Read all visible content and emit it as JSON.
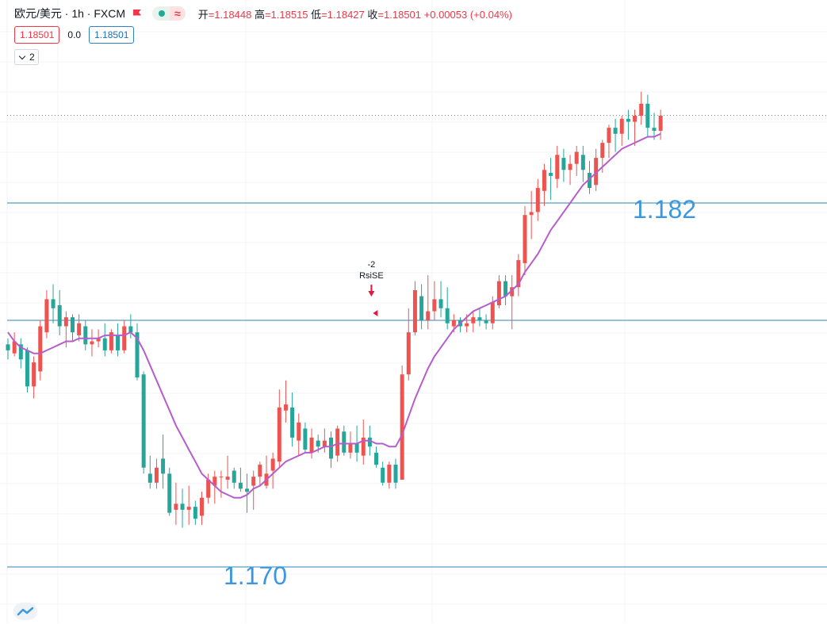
{
  "header": {
    "symbol": "欧元/美元 · 1h · FXCM",
    "open_label": "开",
    "open": "=1.18448",
    "high_label": "高",
    "high": "=1.18515",
    "low_label": "低",
    "low": "=1.18427",
    "close_label": "收",
    "close": "=1.18501",
    "change": "+0.00053 (+0.04%)"
  },
  "trade": {
    "sell": "1.18501",
    "spread": "0.0",
    "buy": "1.18501"
  },
  "indicators_toggle": "2",
  "colors": {
    "up": "#ef5350",
    "down": "#26a69a",
    "ma": "#b65dcc",
    "hline": "#2f86b5",
    "annotation": "#3b98e0"
  },
  "icons": [
    "flag-icon",
    "eye-dot-icon",
    "wave-icon",
    "chevron-down-icon",
    "tradingview-logo-icon"
  ],
  "chart_data": {
    "type": "candlestick",
    "symbol": "EUR/USD",
    "interval": "1h",
    "price_range": [
      1.1695,
      1.1858
    ],
    "current_price": 1.18501,
    "horizontal_levels": [
      1.17,
      1.1782,
      1.1821
    ],
    "annotations": [
      {
        "text": "1.170",
        "price": 1.17
      },
      {
        "text": "1.182",
        "price": 1.1821
      }
    ],
    "signal": {
      "index": 56,
      "text": "RsiSE",
      "value": "-2",
      "price": 1.179
    },
    "candles": [
      [
        1.1774,
        1.1776,
        1.1769,
        1.1772
      ],
      [
        1.1771,
        1.1778,
        1.177,
        1.1775
      ],
      [
        1.1774,
        1.1776,
        1.1766,
        1.1769
      ],
      [
        1.1772,
        1.1773,
        1.1758,
        1.176
      ],
      [
        1.176,
        1.177,
        1.1756,
        1.1768
      ],
      [
        1.1765,
        1.1782,
        1.1762,
        1.178
      ],
      [
        1.1778,
        1.1792,
        1.1776,
        1.1789
      ],
      [
        1.1789,
        1.1794,
        1.1781,
        1.1786
      ],
      [
        1.1787,
        1.1792,
        1.1777,
        1.178
      ],
      [
        1.178,
        1.1785,
        1.1773,
        1.1783
      ],
      [
        1.1783,
        1.1784,
        1.1775,
        1.1778
      ],
      [
        1.1777,
        1.1784,
        1.1775,
        1.1781
      ],
      [
        1.178,
        1.1782,
        1.1772,
        1.1774
      ],
      [
        1.1774,
        1.1779,
        1.177,
        1.1775
      ],
      [
        1.1775,
        1.1779,
        1.1773,
        1.1776
      ],
      [
        1.1776,
        1.1781,
        1.177,
        1.1772
      ],
      [
        1.1772,
        1.1779,
        1.1771,
        1.1778
      ],
      [
        1.1777,
        1.1781,
        1.177,
        1.1772
      ],
      [
        1.1772,
        1.1782,
        1.1771,
        1.178
      ],
      [
        1.178,
        1.1784,
        1.1776,
        1.1778
      ],
      [
        1.1778,
        1.1781,
        1.1762,
        1.1763
      ],
      [
        1.1764,
        1.1765,
        1.1731,
        1.1733
      ],
      [
        1.1731,
        1.1737,
        1.1726,
        1.1728
      ],
      [
        1.1728,
        1.1736,
        1.1726,
        1.1733
      ],
      [
        1.1736,
        1.1744,
        1.1726,
        1.1731
      ],
      [
        1.1731,
        1.1733,
        1.1717,
        1.1718
      ],
      [
        1.1719,
        1.1728,
        1.1714,
        1.1721
      ],
      [
        1.1721,
        1.1726,
        1.1713,
        1.1719
      ],
      [
        1.1719,
        1.1727,
        1.1714,
        1.172
      ],
      [
        1.172,
        1.1722,
        1.1714,
        1.1716
      ],
      [
        1.1717,
        1.1725,
        1.1714,
        1.1723
      ],
      [
        1.1723,
        1.1731,
        1.1721,
        1.1729
      ],
      [
        1.1727,
        1.1732,
        1.1721,
        1.173
      ],
      [
        1.173,
        1.1732,
        1.1723,
        1.173
      ],
      [
        1.1729,
        1.1737,
        1.1726,
        1.173
      ],
      [
        1.1732,
        1.1733,
        1.1726,
        1.1728
      ],
      [
        1.1728,
        1.1733,
        1.1725,
        1.1726
      ],
      [
        1.1726,
        1.1731,
        1.1718,
        1.1725
      ],
      [
        1.1727,
        1.1732,
        1.1719,
        1.173
      ],
      [
        1.173,
        1.1735,
        1.1727,
        1.1734
      ],
      [
        1.1727,
        1.1737,
        1.1726,
        1.1731
      ],
      [
        1.1732,
        1.1738,
        1.1726,
        1.1736
      ],
      [
        1.1735,
        1.1759,
        1.1733,
        1.1753
      ],
      [
        1.1752,
        1.1762,
        1.1748,
        1.1754
      ],
      [
        1.1753,
        1.1758,
        1.174,
        1.1743
      ],
      [
        1.1742,
        1.1751,
        1.1737,
        1.1748
      ],
      [
        1.1746,
        1.1748,
        1.1738,
        1.1739
      ],
      [
        1.1738,
        1.1746,
        1.1736,
        1.1743
      ],
      [
        1.1742,
        1.1744,
        1.1738,
        1.174
      ],
      [
        1.174,
        1.1746,
        1.1738,
        1.1742
      ],
      [
        1.1743,
        1.1745,
        1.1733,
        1.1736
      ],
      [
        1.1737,
        1.1747,
        1.1735,
        1.1746
      ],
      [
        1.1745,
        1.1747,
        1.1737,
        1.1738
      ],
      [
        1.1738,
        1.1745,
        1.1736,
        1.1741
      ],
      [
        1.1741,
        1.1747,
        1.1735,
        1.1738
      ],
      [
        1.1737,
        1.1749,
        1.1734,
        1.1743
      ],
      [
        1.1743,
        1.1747,
        1.1737,
        1.174
      ],
      [
        1.1738,
        1.174,
        1.1733,
        1.1734
      ],
      [
        1.1733,
        1.1735,
        1.1727,
        1.1728
      ],
      [
        1.1728,
        1.1735,
        1.1726,
        1.1734
      ],
      [
        1.1734,
        1.1736,
        1.1726,
        1.1728
      ],
      [
        1.1729,
        1.1767,
        1.1729,
        1.1764
      ],
      [
        1.1764,
        1.1786,
        1.1762,
        1.1778
      ],
      [
        1.1778,
        1.1795,
        1.1777,
        1.1792
      ],
      [
        1.179,
        1.1794,
        1.1779,
        1.1782
      ],
      [
        1.1782,
        1.1797,
        1.1779,
        1.1785
      ],
      [
        1.1785,
        1.1795,
        1.1782,
        1.1789
      ],
      [
        1.1789,
        1.1795,
        1.1783,
        1.1786
      ],
      [
        1.1786,
        1.1793,
        1.1779,
        1.1781
      ],
      [
        1.178,
        1.1784,
        1.1778,
        1.1782
      ],
      [
        1.1782,
        1.1783,
        1.1778,
        1.178
      ],
      [
        1.178,
        1.1784,
        1.1778,
        1.1781
      ],
      [
        1.1781,
        1.1785,
        1.1778,
        1.1783
      ],
      [
        1.1783,
        1.1786,
        1.178,
        1.1782
      ],
      [
        1.1782,
        1.1784,
        1.1779,
        1.1781
      ],
      [
        1.1781,
        1.179,
        1.1779,
        1.1788
      ],
      [
        1.1787,
        1.1797,
        1.1786,
        1.1795
      ],
      [
        1.1795,
        1.1797,
        1.1787,
        1.179
      ],
      [
        1.179,
        1.1797,
        1.1779,
        1.1793
      ],
      [
        1.1793,
        1.1804,
        1.179,
        1.1802
      ],
      [
        1.1801,
        1.182,
        1.1797,
        1.1817
      ],
      [
        1.1817,
        1.1825,
        1.1809,
        1.1818
      ],
      [
        1.1818,
        1.1829,
        1.1815,
        1.1826
      ],
      [
        1.1825,
        1.1834,
        1.182,
        1.1832
      ],
      [
        1.1831,
        1.1836,
        1.1822,
        1.183
      ],
      [
        1.1829,
        1.184,
        1.1826,
        1.1837
      ],
      [
        1.1836,
        1.1839,
        1.1828,
        1.1832
      ],
      [
        1.1832,
        1.1837,
        1.1827,
        1.1834
      ],
      [
        1.1834,
        1.184,
        1.183,
        1.1838
      ],
      [
        1.1837,
        1.184,
        1.1828,
        1.1832
      ],
      [
        1.1831,
        1.1835,
        1.1824,
        1.1826
      ],
      [
        1.1827,
        1.1839,
        1.1825,
        1.1836
      ],
      [
        1.1836,
        1.1842,
        1.1831,
        1.1841
      ],
      [
        1.1841,
        1.1847,
        1.1836,
        1.1846
      ],
      [
        1.1846,
        1.1849,
        1.1838,
        1.1844
      ],
      [
        1.1844,
        1.185,
        1.184,
        1.1849
      ],
      [
        1.1849,
        1.1852,
        1.1842,
        1.1848
      ],
      [
        1.1848,
        1.1852,
        1.184,
        1.185
      ],
      [
        1.185,
        1.1858,
        1.1847,
        1.1854
      ],
      [
        1.1854,
        1.1857,
        1.1843,
        1.1846
      ],
      [
        1.1846,
        1.1851,
        1.1842,
        1.1845
      ],
      [
        1.1845,
        1.1852,
        1.1842,
        1.185
      ]
    ],
    "moving_average": [
      1.1778,
      1.1775,
      1.1773,
      1.1772,
      1.1771,
      1.1771,
      1.1772,
      1.1773,
      1.1774,
      1.1775,
      1.1775,
      1.1776,
      1.1776,
      1.1776,
      1.1776,
      1.1777,
      1.1777,
      1.1777,
      1.1777,
      1.1778,
      1.1776,
      1.1772,
      1.1767,
      1.1762,
      1.1757,
      1.1752,
      1.1747,
      1.1743,
      1.1739,
      1.1735,
      1.1731,
      1.1729,
      1.1727,
      1.1725,
      1.1724,
      1.1723,
      1.1723,
      1.1724,
      1.1726,
      1.1727,
      1.1729,
      1.1731,
      1.1733,
      1.1735,
      1.1736,
      1.1737,
      1.1738,
      1.1738,
      1.1739,
      1.174,
      1.174,
      1.1741,
      1.1741,
      1.1741,
      1.1741,
      1.1742,
      1.1742,
      1.1741,
      1.1741,
      1.174,
      1.174,
      1.1744,
      1.175,
      1.1756,
      1.1761,
      1.1766,
      1.177,
      1.1773,
      1.1776,
      1.1779,
      1.1781,
      1.1783,
      1.1785,
      1.1786,
      1.1787,
      1.1788,
      1.1789,
      1.179,
      1.1792,
      1.1794,
      1.1798,
      1.1801,
      1.1804,
      1.1808,
      1.1812,
      1.1815,
      1.1818,
      1.1821,
      1.1824,
      1.1827,
      1.1829,
      1.1831,
      1.1833,
      1.1835,
      1.1837,
      1.1839,
      1.184,
      1.1841,
      1.1842,
      1.1843,
      1.1843,
      1.1844
    ]
  }
}
